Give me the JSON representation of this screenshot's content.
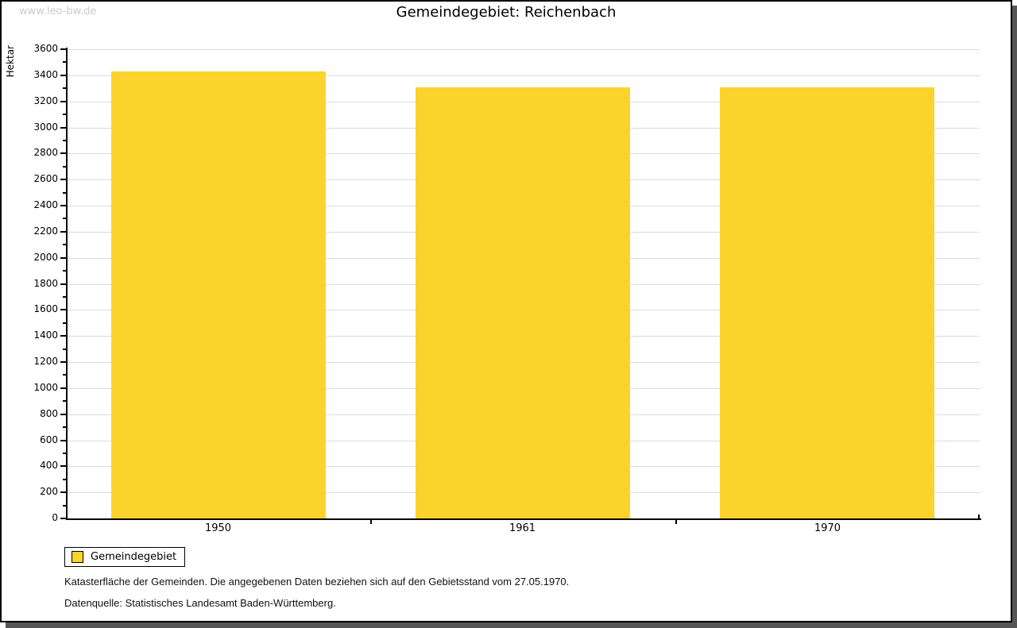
{
  "watermark": "www.leo-bw.de",
  "chart_data": {
    "type": "bar",
    "title": "Gemeindegebiet: Reichenbach",
    "categories": [
      "1950",
      "1961",
      "1970"
    ],
    "values": [
      3430,
      3310,
      3310
    ],
    "series_name": "Gemeindegebiet",
    "xlabel": "",
    "ylabel": "Hektar",
    "ylim": [
      0,
      3600
    ],
    "yticks": [
      0,
      200,
      400,
      600,
      800,
      1000,
      1200,
      1400,
      1600,
      1800,
      2000,
      2200,
      2400,
      2600,
      2800,
      3000,
      3200,
      3400,
      3600
    ],
    "ytick_step": 200,
    "minor_tick_step": 100,
    "grid": true,
    "legend": {
      "label": "Gemeindegebiet",
      "position": "bottom-left"
    }
  },
  "footer": {
    "line1": "Katasterfläche der Gemeinden. Die angegebenen Daten beziehen sich auf den Gebietsstand vom 27.05.1970.",
    "line2": "Datenquelle: Statistisches Landesamt Baden-Württemberg."
  },
  "colors": {
    "bar_fill": "#FCD32C",
    "gridline": "#DCDCDC",
    "watermark": "#CBCBCB",
    "frame_shadow": "#565656",
    "axis": "#000000"
  }
}
